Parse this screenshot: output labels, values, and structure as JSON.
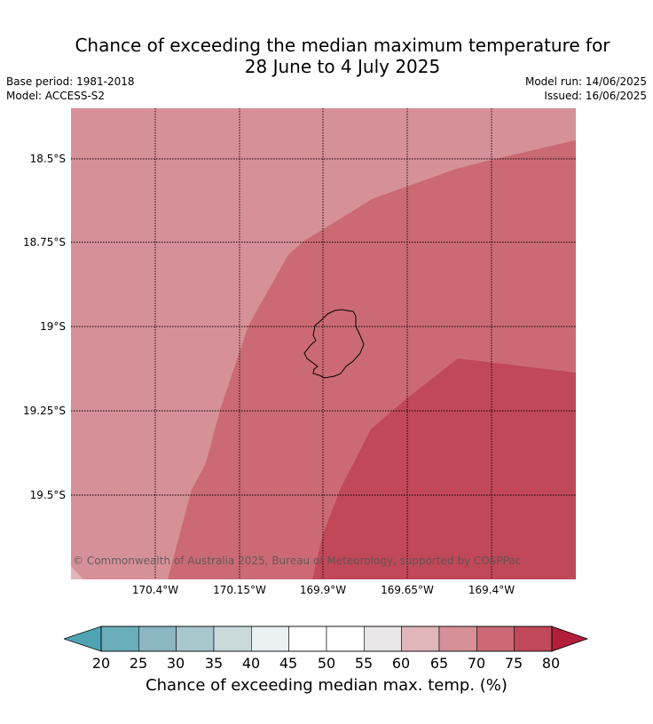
{
  "title": {
    "line1": "Chance of exceeding the median maximum temperature for",
    "line2": "28 June to 4 July 2025"
  },
  "meta": {
    "base_period": "Base period: 1981-2018",
    "model": "Model: ACCESS-S2",
    "model_run": "Model run: 14/06/2025",
    "issued": "Issued: 16/06/2025"
  },
  "map": {
    "lat_labels": [
      "18.5°S",
      "18.75°S",
      "19°S",
      "19.25°S",
      "19.5°S"
    ],
    "lon_labels": [
      "170.4°W",
      "170.15°W",
      "169.9°W",
      "169.65°W",
      "169.4°W"
    ],
    "copyright": "© Commonwealth of Australia 2025, Bureau of Meteorology, supported by COSPPac",
    "zone_colors": {
      "65-70": "#d69098",
      "70-75": "#cb6a74",
      "75-80": "#c14858"
    },
    "island": "Niue"
  },
  "colorbar": {
    "title": "Chance of exceeding median max. temp. (%)",
    "ticks": [
      "20",
      "25",
      "30",
      "35",
      "40",
      "45",
      "50",
      "55",
      "60",
      "65",
      "70",
      "75",
      "80"
    ],
    "colors": [
      "#6aaebb",
      "#8bb6c2",
      "#a8c7cc",
      "#c9d9dc",
      "#e9f1f2",
      "#ffffff",
      "#ffffff",
      "#e8e6e6",
      "#e0b6ba",
      "#d69098",
      "#cb6a74",
      "#c14858"
    ],
    "under_color": "#4fa4b4",
    "over_color": "#b31e3c"
  }
}
